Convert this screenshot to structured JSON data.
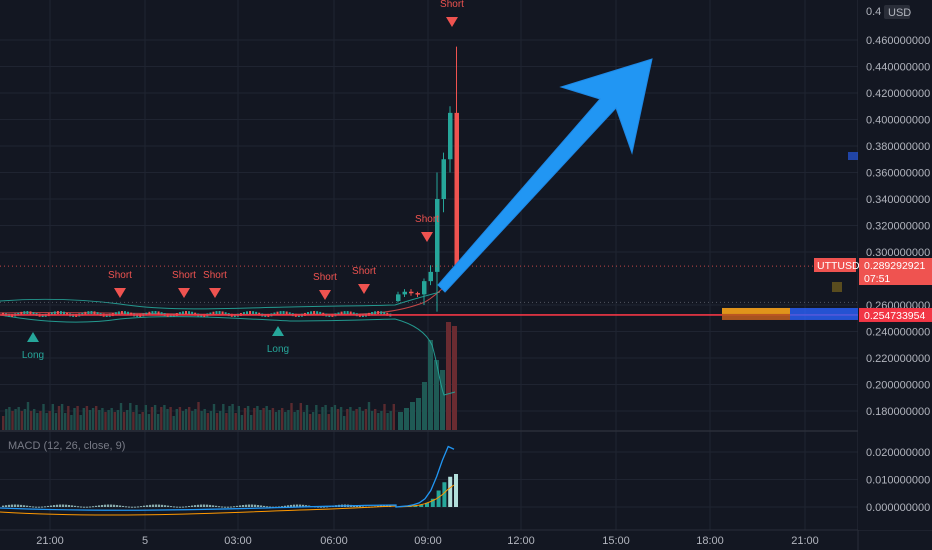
{
  "chart_data": [
    {
      "type": "candlestick",
      "symbol": "UTTUSD",
      "currency": "USD",
      "y_top_label_partial": "0.4",
      "ylim": [
        0.161,
        0.481
      ],
      "yticks": [
        "0.460000000",
        "0.440000000",
        "0.420000000",
        "0.400000000",
        "0.380000000",
        "0.360000000",
        "0.340000000",
        "0.320000000",
        "0.300000000",
        "0.260000000",
        "0.240000000",
        "0.220000000",
        "0.200000000",
        "0.180000000"
      ],
      "ytick_values": [
        0.46,
        0.44,
        0.42,
        0.4,
        0.38,
        0.36,
        0.34,
        0.32,
        0.3,
        0.26,
        0.24,
        0.22,
        0.2,
        0.18
      ],
      "xticks": [
        "21:00",
        "5",
        "03:00",
        "06:00",
        "09:00",
        "12:00",
        "15:00",
        "18:00",
        "21:00"
      ],
      "last_price": {
        "symbol": "UTTUSD",
        "value": "0.289292921",
        "countdown": "07:51",
        "color": "#ef5350"
      },
      "horizontal_line": {
        "value": "0.254733954",
        "color": "#f23645"
      },
      "candles": [
        {
          "t": "09:00",
          "o": 0.263,
          "h": 0.27,
          "l": 0.262,
          "c": 0.268
        },
        {
          "t": "09:06",
          "o": 0.268,
          "h": 0.272,
          "l": 0.266,
          "c": 0.27
        },
        {
          "t": "09:12",
          "o": 0.27,
          "h": 0.272,
          "l": 0.267,
          "c": 0.269
        },
        {
          "t": "09:18",
          "o": 0.269,
          "h": 0.27,
          "l": 0.266,
          "c": 0.268
        },
        {
          "t": "09:24",
          "o": 0.268,
          "h": 0.28,
          "l": 0.26,
          "c": 0.278
        },
        {
          "t": "09:30",
          "o": 0.278,
          "h": 0.29,
          "l": 0.275,
          "c": 0.285
        },
        {
          "t": "09:36",
          "o": 0.285,
          "h": 0.36,
          "l": 0.255,
          "c": 0.34
        },
        {
          "t": "09:42",
          "o": 0.34,
          "h": 0.375,
          "l": 0.33,
          "c": 0.37
        },
        {
          "t": "09:48",
          "o": 0.37,
          "h": 0.41,
          "l": 0.36,
          "c": 0.405
        },
        {
          "t": "09:54",
          "o": 0.405,
          "h": 0.455,
          "l": 0.29,
          "c": 0.29
        }
      ],
      "signals": [
        {
          "label": "Long",
          "kind": "long",
          "t": "20:45"
        },
        {
          "label": "Short",
          "kind": "short",
          "t": "00:15"
        },
        {
          "label": "Short",
          "kind": "short",
          "t": "01:45"
        },
        {
          "label": "Short",
          "kind": "short",
          "t": "02:40"
        },
        {
          "label": "Long",
          "kind": "long",
          "t": "04:15"
        },
        {
          "label": "Short",
          "kind": "short",
          "t": "05:55"
        },
        {
          "label": "Short",
          "kind": "short",
          "t": "07:10"
        },
        {
          "label": "Short",
          "kind": "short",
          "t": "09:06"
        },
        {
          "label": "Short",
          "kind": "short",
          "t": "09:45"
        }
      ]
    },
    {
      "type": "macd",
      "title": "MACD (12, 26, close, 9)",
      "yticks": [
        "0.020000000",
        "0.010000000",
        "0.000000000"
      ],
      "ytick_values": [
        0.02,
        0.01,
        0.0
      ],
      "ylim": [
        -0.005,
        0.025
      ],
      "macd_line": [
        0.0,
        0.0002,
        0.0004,
        0.0008,
        0.0015,
        0.003,
        0.006,
        0.011,
        0.017,
        0.022,
        0.021
      ],
      "signal_line": [
        0.0,
        0.0001,
        0.0002,
        0.0004,
        0.0007,
        0.0012,
        0.002,
        0.003,
        0.0045,
        0.0065,
        0.008
      ],
      "histogram": [
        0.0001,
        0.0002,
        0.0003,
        0.0005,
        0.0008,
        0.0015,
        0.003,
        0.006,
        0.009,
        0.011,
        0.012
      ]
    }
  ],
  "colors": {
    "background": "#131722",
    "grid": "#1f2431",
    "bull": "#26a69a",
    "bear": "#ef5350",
    "arrow": "#2196f3",
    "macd": "#2196f3",
    "signal": "#ff9800"
  }
}
